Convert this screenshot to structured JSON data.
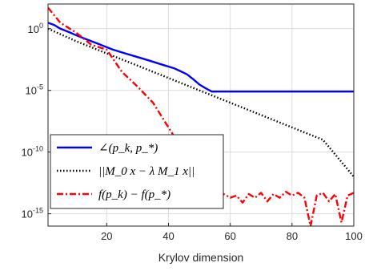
{
  "chart_data": {
    "type": "line",
    "title": "",
    "xlabel": "Krylov dimension",
    "ylabel": "",
    "x_scale": "linear",
    "y_scale": "log",
    "xlim": [
      1,
      100
    ],
    "ylim": [
      1e-16,
      100.0
    ],
    "xticks": [
      20,
      40,
      60,
      80,
      100
    ],
    "xtick_labels": [
      "20",
      "40",
      "60",
      "80",
      "100"
    ],
    "yticks": [
      1,
      1e-05,
      1e-10,
      1e-15
    ],
    "ytick_labels": [
      {
        "base": "10",
        "exp": "0"
      },
      {
        "base": "10",
        "exp": "-5"
      },
      {
        "base": "10",
        "exp": "-10"
      },
      {
        "base": "10",
        "exp": "-15"
      }
    ],
    "grid": true,
    "legend_position": "bottom-left",
    "series": [
      {
        "name": "∠(p_k, p_*)",
        "color": "#0000ff",
        "line_style": "solid",
        "x": [
          1,
          3,
          5,
          8,
          10,
          14,
          18,
          22,
          26,
          30,
          34,
          38,
          42,
          44,
          46,
          48,
          50,
          52,
          54,
          56,
          60,
          70,
          80,
          90,
          100
        ],
        "y": [
          3,
          2,
          1,
          0.5,
          0.3,
          0.12,
          0.05,
          0.02,
          0.01,
          0.005,
          0.0025,
          0.0012,
          0.0006,
          0.00035,
          0.0002,
          8e-05,
          3e-05,
          1.5e-05,
          8e-06,
          8e-06,
          8e-06,
          8e-06,
          8e-06,
          8e-06,
          8e-06
        ]
      },
      {
        "name": "||M_0 x − λ M_1 x||",
        "color": "#000000",
        "line_style": "dotted",
        "x": [
          1,
          10,
          20,
          30,
          40,
          50,
          60,
          70,
          80,
          90,
          100
        ],
        "y": [
          1,
          0.1,
          0.01,
          0.001,
          0.0001,
          1e-05,
          1e-06,
          1e-07,
          1e-08,
          1e-09,
          1e-12
        ]
      },
      {
        "name": "f(p_k) − f(p_*)",
        "color": "#ff0000",
        "line_style": "dashdot",
        "x": [
          1,
          5,
          10,
          15,
          20,
          25,
          28,
          30,
          35,
          40,
          45,
          50,
          55,
          60,
          62,
          64,
          66,
          68,
          70,
          72,
          74,
          76,
          78,
          80,
          82,
          84,
          86,
          88,
          90,
          92,
          94,
          96,
          98,
          100
        ],
        "y": [
          50,
          3,
          0.5,
          0.05,
          0.02,
          0.0003,
          6e-05,
          2e-05,
          1e-06,
          1e-08,
          1e-10,
          1e-12,
          1e-13,
          2e-14,
          3e-14,
          8e-15,
          4e-14,
          2e-14,
          5e-14,
          1e-14,
          4e-14,
          2e-14,
          6e-14,
          3e-14,
          5e-14,
          2e-14,
          1e-16,
          3e-14,
          5e-14,
          1e-14,
          4e-14,
          2e-16,
          3e-14,
          5e-14
        ]
      }
    ]
  }
}
